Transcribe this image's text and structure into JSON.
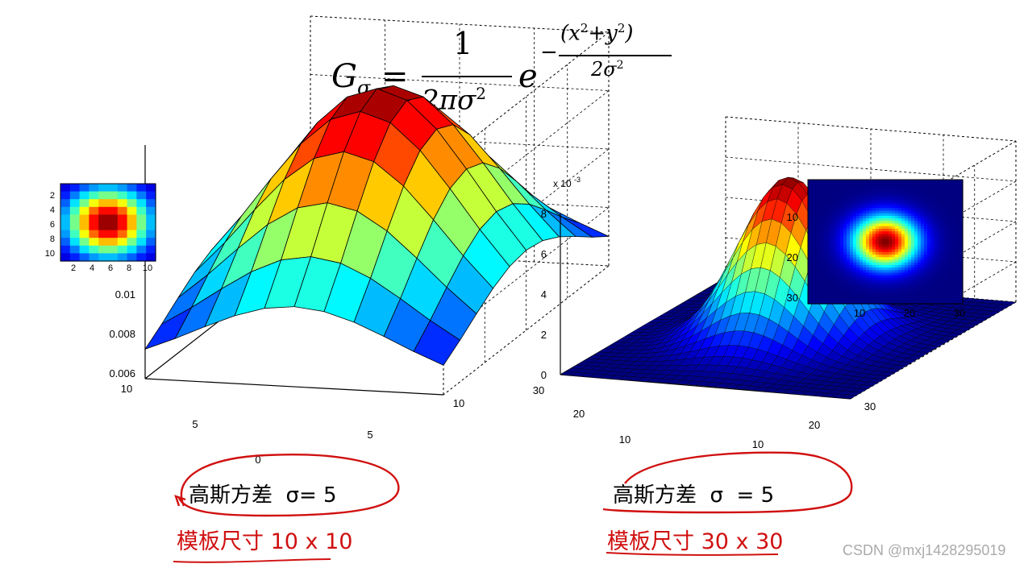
{
  "formula": {
    "lhs": "G",
    "lhs_sub": "σ",
    "equals": "=",
    "numerator": "1",
    "denominator": "2πσ",
    "denominator_exp": "2",
    "base": "e",
    "exp_sign": "−",
    "exp_num_a": "(x",
    "exp_num_b": "+y",
    "exp_num_c": ")",
    "exp_sq": "2",
    "exp_den": "2σ",
    "exp_den_exp": "2"
  },
  "left_panel": {
    "inset_ticks_y": [
      "2",
      "4",
      "6",
      "8",
      "10"
    ],
    "inset_ticks_x": [
      "2",
      "4",
      "6",
      "8",
      "10"
    ],
    "z_ticks": [
      "0.01",
      "0.008",
      "0.006"
    ],
    "x_ticks": [
      "10",
      "5",
      "0"
    ],
    "y_ticks": [
      "5",
      "10"
    ],
    "caption": "高斯方差  σ= 5",
    "size_label": "模板尺寸 10 x 10"
  },
  "right_panel": {
    "z_multiplier": "x 10",
    "z_multiplier_exp": "-3",
    "z_ticks": [
      "8",
      "6",
      "4",
      "2",
      "0"
    ],
    "x_ticks": [
      "30",
      "20",
      "10"
    ],
    "y_ticks": [
      "10",
      "20",
      "30"
    ],
    "inset_ticks_y": [
      "10",
      "20",
      "30"
    ],
    "inset_ticks_x": [
      "10",
      "20",
      "30"
    ],
    "caption": "高斯方差  σ  = 5",
    "size_label": "模板尺寸 30 x 30"
  },
  "watermark": "CSDN @mxj1428295019",
  "colors": {
    "annotation_red": "#d01010",
    "jet_low": "#00008f",
    "jet_high": "#800000"
  }
}
